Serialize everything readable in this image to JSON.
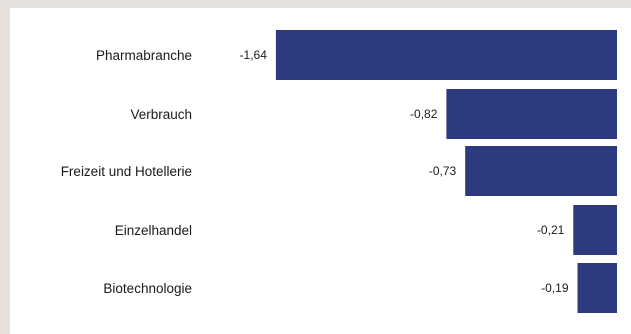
{
  "chart_data": {
    "type": "bar",
    "orientation": "horizontal",
    "categories": [
      "Pharmabranche",
      "Verbrauch",
      "Freizeit und Hotellerie",
      "Einzelhandel",
      "Biotechnologie"
    ],
    "values": [
      -1.64,
      -0.82,
      -0.73,
      -0.21,
      -0.19
    ],
    "value_labels": [
      "-1,64",
      "-0,82",
      "-0,73",
      "-0,21",
      "-0,19"
    ],
    "xlim": [
      -1.64,
      0
    ],
    "grid": false,
    "bar_color": "#2e3a80",
    "background_color": "#e6e1dc",
    "panel_color": "#ffffff"
  }
}
